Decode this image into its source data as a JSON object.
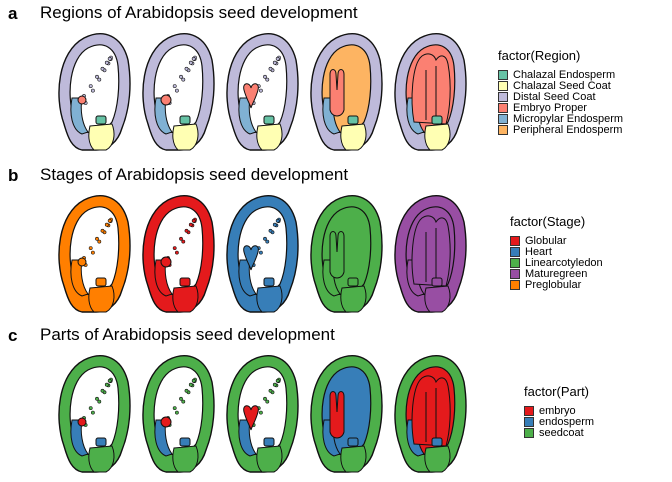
{
  "panels": [
    {
      "letter": "a",
      "title": "Regions of Arabidopsis seed development",
      "legend_title": "factor(Region)",
      "legend": [
        {
          "label": "Chalazal Endosperm",
          "color": "#66C2A5"
        },
        {
          "label": "Chalazal Seed Coat",
          "color": "#FFFFB3"
        },
        {
          "label": "Distal Seed Coat",
          "color": "#BEBADA"
        },
        {
          "label": "Embryo Proper",
          "color": "#FB8072"
        },
        {
          "label": "Micropylar Endosperm",
          "color": "#80B1D3"
        },
        {
          "label": "Peripheral Endosperm",
          "color": "#FDB462"
        }
      ],
      "seeds": [
        {
          "coat": "#BEBADA",
          "inner": "#ffffff",
          "embryo": "#FB8072",
          "micro": "#80B1D3",
          "chalazal": "#66C2A5",
          "base": "#FFFFB3",
          "stage": 0
        },
        {
          "coat": "#BEBADA",
          "inner": "#ffffff",
          "embryo": "#FB8072",
          "micro": "#80B1D3",
          "chalazal": "#66C2A5",
          "base": "#FFFFB3",
          "stage": 1
        },
        {
          "coat": "#BEBADA",
          "inner": "#ffffff",
          "embryo": "#FB8072",
          "micro": "#80B1D3",
          "chalazal": "#66C2A5",
          "base": "#FFFFB3",
          "stage": 2
        },
        {
          "coat": "#BEBADA",
          "inner": "#FDB462",
          "embryo": "#FB8072",
          "micro": "#80B1D3",
          "chalazal": "#66C2A5",
          "base": "#FFFFB3",
          "stage": 3
        },
        {
          "coat": "#BEBADA",
          "inner": "#FB8072",
          "embryo": "#FB8072",
          "micro": "#80B1D3",
          "chalazal": "#66C2A5",
          "base": "#FFFFB3",
          "stage": 4
        }
      ]
    },
    {
      "letter": "b",
      "title": "Stages of Arabidopsis seed development",
      "legend_title": "factor(Stage)",
      "legend": [
        {
          "label": "Globular",
          "color": "#E41A1C"
        },
        {
          "label": "Heart",
          "color": "#377EB8"
        },
        {
          "label": "Linearcotyledon",
          "color": "#4DAF4A"
        },
        {
          "label": "Maturegreen",
          "color": "#984EA3"
        },
        {
          "label": "Preglobular",
          "color": "#FF7F00"
        }
      ],
      "seeds": [
        {
          "coat": "#FF7F00",
          "inner": "#ffffff",
          "embryo": "#FF7F00",
          "micro": "#FF7F00",
          "chalazal": "#FF7F00",
          "base": "#FF7F00",
          "stage": 0
        },
        {
          "coat": "#E41A1C",
          "inner": "#ffffff",
          "embryo": "#E41A1C",
          "micro": "#E41A1C",
          "chalazal": "#E41A1C",
          "base": "#E41A1C",
          "stage": 1
        },
        {
          "coat": "#377EB8",
          "inner": "#ffffff",
          "embryo": "#377EB8",
          "micro": "#377EB8",
          "chalazal": "#377EB8",
          "base": "#377EB8",
          "stage": 2
        },
        {
          "coat": "#4DAF4A",
          "inner": "#4DAF4A",
          "embryo": "#4DAF4A",
          "micro": "#4DAF4A",
          "chalazal": "#4DAF4A",
          "base": "#4DAF4A",
          "stage": 3
        },
        {
          "coat": "#984EA3",
          "inner": "#984EA3",
          "embryo": "#984EA3",
          "micro": "#984EA3",
          "chalazal": "#984EA3",
          "base": "#984EA3",
          "stage": 4
        }
      ]
    },
    {
      "letter": "c",
      "title": "Parts of Arabidopsis seed development",
      "legend_title": "factor(Part)",
      "legend": [
        {
          "label": "embryo",
          "color": "#E41A1C"
        },
        {
          "label": "endosperm",
          "color": "#377EB8"
        },
        {
          "label": "seedcoat",
          "color": "#4DAF4A"
        }
      ],
      "seeds": [
        {
          "coat": "#4DAF4A",
          "inner": "#ffffff",
          "embryo": "#E41A1C",
          "micro": "#377EB8",
          "chalazal": "#377EB8",
          "base": "#4DAF4A",
          "stage": 0
        },
        {
          "coat": "#4DAF4A",
          "inner": "#ffffff",
          "embryo": "#E41A1C",
          "micro": "#377EB8",
          "chalazal": "#377EB8",
          "base": "#4DAF4A",
          "stage": 1
        },
        {
          "coat": "#4DAF4A",
          "inner": "#ffffff",
          "embryo": "#E41A1C",
          "micro": "#377EB8",
          "chalazal": "#377EB8",
          "base": "#4DAF4A",
          "stage": 2
        },
        {
          "coat": "#4DAF4A",
          "inner": "#377EB8",
          "embryo": "#E41A1C",
          "micro": "#377EB8",
          "chalazal": "#377EB8",
          "base": "#4DAF4A",
          "stage": 3
        },
        {
          "coat": "#4DAF4A",
          "inner": "#E41A1C",
          "embryo": "#E41A1C",
          "micro": "#377EB8",
          "chalazal": "#377EB8",
          "base": "#4DAF4A",
          "stage": 4
        }
      ]
    }
  ]
}
